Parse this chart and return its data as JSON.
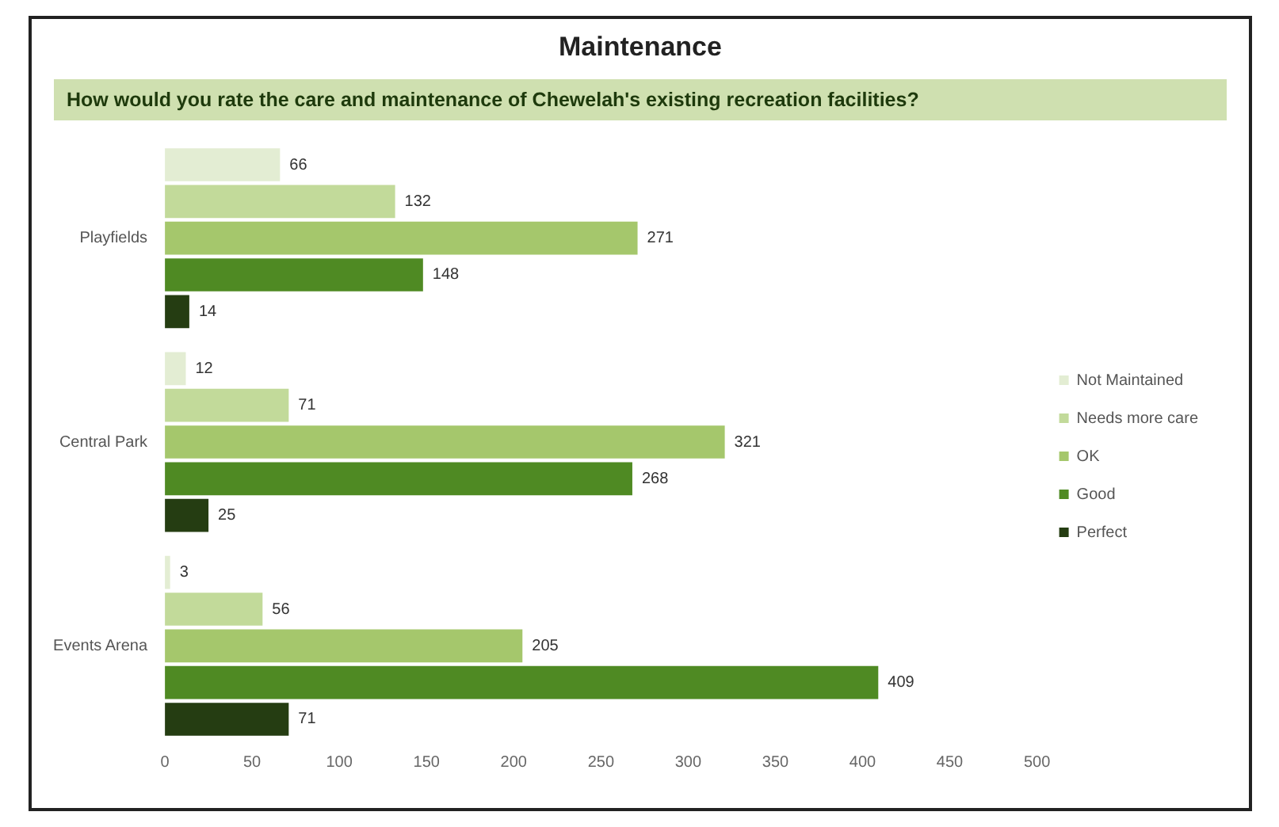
{
  "chart_data": {
    "type": "bar",
    "orientation": "horizontal",
    "title": "Maintenance",
    "subtitle": "How would you rate the care and maintenance of Chewelah's existing recreation facilities?",
    "categories": [
      "Playfields",
      "Central Park",
      "Events Arena"
    ],
    "series": [
      {
        "name": "Not Maintained",
        "color": "#e3edd3",
        "values": [
          66,
          12,
          3
        ]
      },
      {
        "name": "Needs more care",
        "color": "#c2da9a",
        "values": [
          132,
          71,
          56
        ]
      },
      {
        "name": "OK",
        "color": "#a5c76c",
        "values": [
          271,
          321,
          205
        ]
      },
      {
        "name": "Good",
        "color": "#4f8a23",
        "values": [
          148,
          268,
          409
        ]
      },
      {
        "name": "Perfect",
        "color": "#253d12",
        "values": [
          14,
          25,
          71
        ]
      }
    ],
    "xlim": [
      0,
      500
    ],
    "xticks": [
      0,
      50,
      100,
      150,
      200,
      250,
      300,
      350,
      400,
      450,
      500
    ],
    "data_labels": true,
    "grid": false,
    "legend": "right"
  }
}
